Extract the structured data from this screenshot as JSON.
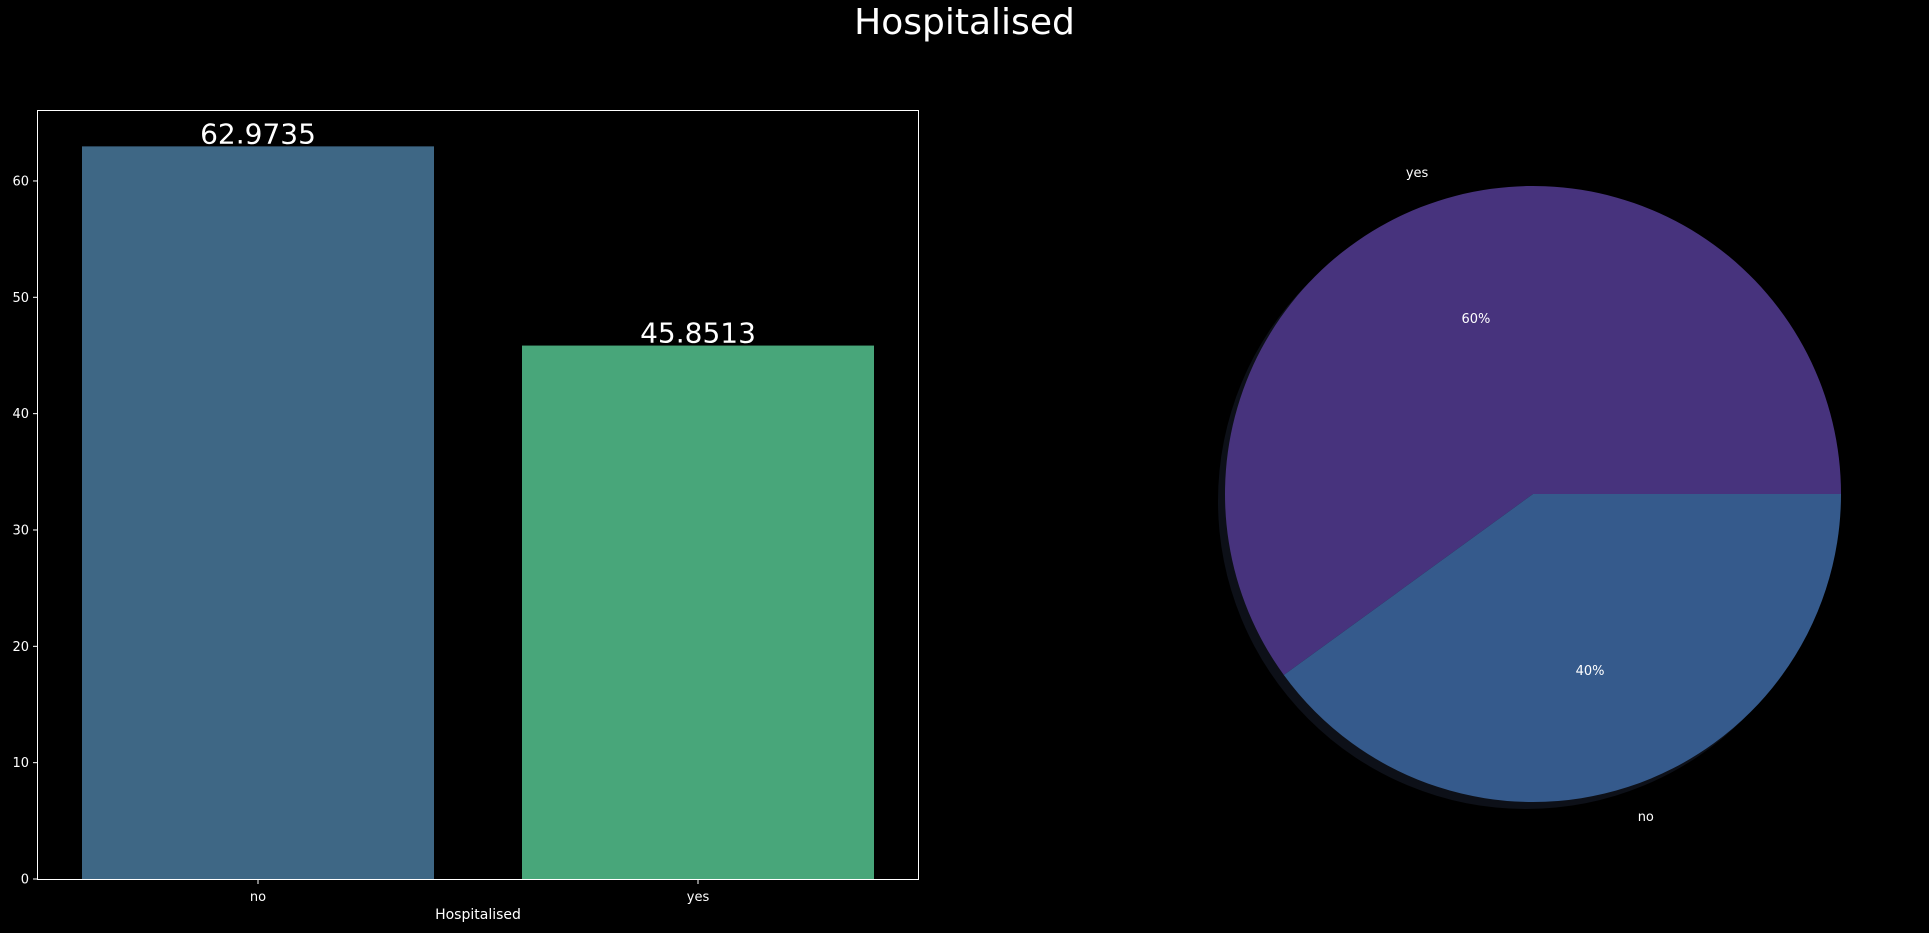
{
  "figure": {
    "title": "Hospitalised"
  },
  "chart_data": [
    {
      "type": "bar",
      "title": "",
      "xlabel": "Hospitalised",
      "ylabel": "",
      "categories": [
        "no",
        "yes"
      ],
      "values": [
        62.9735,
        45.8513
      ],
      "value_labels": [
        "62.9735",
        "45.8513"
      ],
      "colors": [
        "#3e6785",
        "#48a67a"
      ],
      "ylim": [
        0,
        66.1
      ],
      "yticks": [
        0,
        10,
        20,
        30,
        40,
        50,
        60
      ],
      "grid": false,
      "legend": "none"
    },
    {
      "type": "pie",
      "title": "",
      "labels": [
        "yes",
        "no"
      ],
      "values": [
        60,
        40
      ],
      "pct_labels": [
        "60%",
        "40%"
      ],
      "colors": [
        "#47337d",
        "#355a8c"
      ],
      "shadow": true,
      "legend": "none"
    }
  ]
}
